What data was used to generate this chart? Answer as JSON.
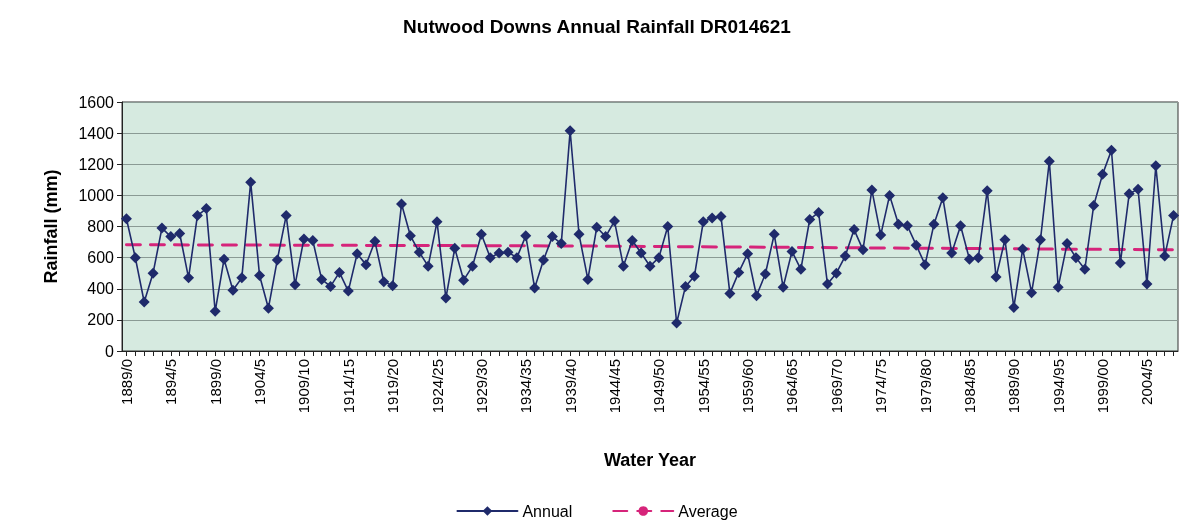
{
  "chart_data": {
    "type": "line",
    "title": "Nutwood Downs Annual Rainfall DR014621",
    "xlabel": "Water Year",
    "ylabel": "Rainfall (mm)",
    "categories": [
      "1889/0",
      null,
      null,
      null,
      null,
      "1894/5",
      null,
      null,
      null,
      null,
      "1899/0",
      null,
      null,
      null,
      null,
      "1904/5",
      null,
      null,
      null,
      null,
      "1909/10",
      null,
      null,
      null,
      null,
      "1914/15",
      null,
      null,
      null,
      null,
      "1919/20",
      null,
      null,
      null,
      null,
      "1924/25",
      null,
      null,
      null,
      null,
      "1929/30",
      null,
      null,
      null,
      null,
      "1934/35",
      null,
      null,
      null,
      null,
      "1939/40",
      null,
      null,
      null,
      null,
      "1944/45",
      null,
      null,
      null,
      null,
      "1949/50",
      null,
      null,
      null,
      null,
      "1954/55",
      null,
      null,
      null,
      null,
      "1959/60",
      null,
      null,
      null,
      null,
      "1964/65",
      null,
      null,
      null,
      null,
      "1969/70",
      null,
      null,
      null,
      null,
      "1974/75",
      null,
      null,
      null,
      null,
      "1979/80",
      null,
      null,
      null,
      null,
      "1984/85",
      null,
      null,
      null,
      null,
      "1989/90",
      null,
      null,
      null,
      null,
      "1994/95",
      null,
      null,
      null,
      null,
      "1999/00",
      null,
      null,
      null,
      null,
      "2004/5",
      null,
      null,
      null
    ],
    "series": [
      {
        "name": "Annual",
        "color": "#1f2a6b",
        "marker": "diamond",
        "line_style": "solid",
        "values": [
          850,
          600,
          315,
          500,
          790,
          735,
          755,
          470,
          870,
          915,
          255,
          590,
          390,
          470,
          1085,
          485,
          275,
          585,
          870,
          425,
          720,
          710,
          460,
          415,
          505,
          385,
          625,
          555,
          705,
          445,
          420,
          945,
          740,
          635,
          545,
          830,
          340,
          660,
          455,
          545,
          750,
          600,
          630,
          635,
          600,
          740,
          405,
          585,
          735,
          690,
          1415,
          750,
          460,
          795,
          735,
          835,
          545,
          710,
          630,
          545,
          600,
          800,
          180,
          415,
          480,
          830,
          855,
          865,
          370,
          505,
          625,
          355,
          495,
          750,
          410,
          640,
          525,
          845,
          890,
          430,
          500,
          610,
          780,
          650,
          1035,
          745,
          1000,
          815,
          805,
          680,
          555,
          815,
          985,
          630,
          805,
          590,
          600,
          1030,
          475,
          715,
          280,
          655,
          375,
          715,
          1220,
          410,
          690,
          600,
          525,
          935,
          1135,
          1290,
          565,
          1010,
          1040,
          430,
          1190,
          610,
          870
        ]
      },
      {
        "name": "Average",
        "color": "#d6247a",
        "marker": "none",
        "line_style": "dashed",
        "values": [
          683,
          null,
          null,
          null,
          null,
          null,
          null,
          null,
          null,
          null,
          null,
          null,
          null,
          null,
          null,
          null,
          null,
          null,
          null,
          null,
          null,
          null,
          null,
          null,
          null,
          null,
          null,
          null,
          null,
          null,
          null,
          null,
          null,
          null,
          null,
          null,
          null,
          null,
          null,
          null,
          null,
          null,
          null,
          null,
          null,
          null,
          null,
          null,
          null,
          null,
          675,
          null,
          null,
          null,
          null,
          null,
          null,
          null,
          null,
          null,
          null,
          null,
          null,
          null,
          null,
          null,
          null,
          null,
          null,
          null,
          null,
          null,
          null,
          null,
          null,
          null,
          null,
          null,
          null,
          null,
          null,
          null,
          null,
          null,
          null,
          null,
          null,
          null,
          null,
          null,
          null,
          null,
          null,
          null,
          null,
          null,
          null,
          null,
          null,
          null,
          null,
          null,
          null,
          null,
          null,
          null,
          null,
          null,
          null,
          null,
          null,
          null,
          null,
          null,
          null,
          null,
          null,
          null,
          650
        ]
      }
    ],
    "ylim": [
      0,
      1600
    ],
    "yticks": [
      0,
      200,
      400,
      600,
      800,
      1000,
      1200,
      1400,
      1600
    ],
    "grid": "y",
    "legend": "bottom"
  }
}
